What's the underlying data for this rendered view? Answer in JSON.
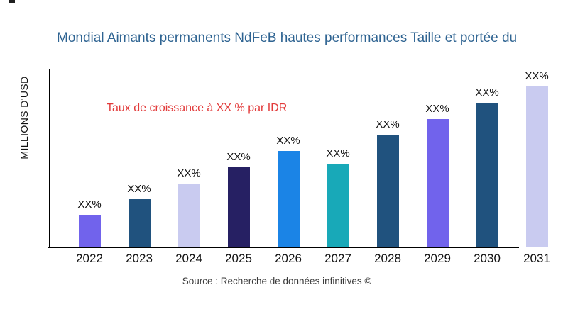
{
  "chart_data": {
    "type": "bar",
    "title": "Mondial Aimants permanents NdFeB hautes performances Taille et portée du",
    "ylabel": "MILLIONS D'USD",
    "xlabel": "",
    "annotation": "Taux de croissance à XX % par IDR",
    "categories": [
      "2022",
      "2023",
      "2024",
      "2025",
      "2026",
      "2027",
      "2028",
      "2029",
      "2030",
      "2031"
    ],
    "values": [
      46,
      68,
      90,
      113,
      136,
      118,
      159,
      181,
      204,
      227
    ],
    "values_are_relative_heights": true,
    "bar_labels": [
      "XX%",
      "XX%",
      "XX%",
      "XX%",
      "XX%",
      "XX%",
      "XX%",
      "XX%",
      "XX%",
      "XX%"
    ],
    "bar_colors": [
      "#7163ec",
      "#20527e",
      "#c9cbf0",
      "#262063",
      "#1b84e6",
      "#18a9b8",
      "#20527e",
      "#7163ec",
      "#20527e",
      "#c9cbf0"
    ],
    "ylim": [
      0,
      240
    ],
    "grid": false,
    "legend": null
  },
  "theme": {
    "title_color": "#2f6492",
    "annotation_color": "#e23b3b",
    "axis_color": "#000000",
    "text_color": "#111111",
    "source_color": "#3a3a3a",
    "background": "#ffffff"
  },
  "footer": {
    "source": "Source : Recherche de données infinitives ©"
  }
}
